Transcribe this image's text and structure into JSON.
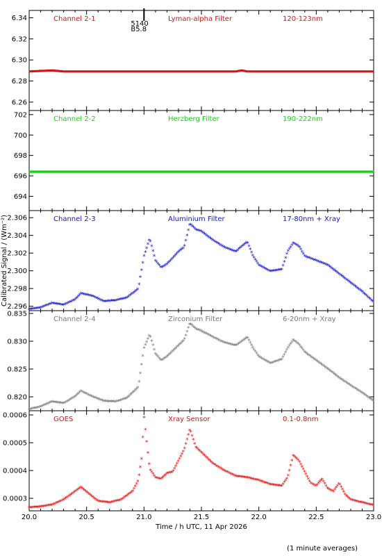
{
  "chart_data": {
    "type": "scatter",
    "xlabel": "Time / h UTC, 11 Apr 2026",
    "ylabel": "Calibrated Signal / (Wm⁻²)",
    "footnote": "(1 minute averages)",
    "xlim": [
      20.0,
      23.0
    ],
    "xticks": [
      "20.0",
      "20.5",
      "21.0",
      "21.5",
      "22.0",
      "22.5",
      "23.0"
    ],
    "annotation": {
      "x": 21.0,
      "lines": [
        "5140",
        "B5.8"
      ]
    },
    "panels": [
      {
        "name": "Channel 2-1",
        "filter": "Lyman-alpha Filter",
        "band": "120-123nm",
        "color": "#d21414",
        "ylim": [
          6.252,
          6.347
        ],
        "yticks": [
          "6.26",
          "6.28",
          "6.30",
          "6.32",
          "6.34"
        ],
        "x": [
          20.0,
          20.2,
          20.3,
          20.6,
          21.0,
          21.4,
          21.8,
          21.85,
          21.9,
          22.2,
          22.6,
          23.0
        ],
        "y": [
          6.289,
          6.29,
          6.289,
          6.289,
          6.289,
          6.289,
          6.289,
          6.29,
          6.289,
          6.289,
          6.289,
          6.289
        ]
      },
      {
        "name": "Channel 2-2",
        "filter": "Herzberg Filter",
        "band": "190-222nm",
        "color": "#14d214",
        "ylim": [
          692.6,
          702.4
        ],
        "yticks": [
          "694",
          "696",
          "698",
          "700",
          "702"
        ],
        "x": [
          20.0,
          20.5,
          21.0,
          21.5,
          22.0,
          22.5,
          23.0
        ],
        "y": [
          696.4,
          696.4,
          696.4,
          696.4,
          696.4,
          696.4,
          696.4
        ]
      },
      {
        "name": "Channel 2-3",
        "filter": "Aluminium Filter",
        "band": "17-80nm + Xray",
        "color": "#1414c8",
        "ylim": [
          2.2955,
          2.3068
        ],
        "yticks": [
          "2.296",
          "2.298",
          "2.300",
          "2.302",
          "2.304",
          "2.306"
        ],
        "x": [
          20.0,
          20.1,
          20.2,
          20.3,
          20.4,
          20.45,
          20.55,
          20.65,
          20.75,
          20.85,
          20.95,
          21.0,
          21.05,
          21.1,
          21.15,
          21.2,
          21.3,
          21.35,
          21.4,
          21.45,
          21.5,
          21.6,
          21.7,
          21.8,
          21.85,
          21.9,
          21.95,
          22.0,
          22.1,
          22.2,
          22.25,
          22.3,
          22.35,
          22.4,
          22.5,
          22.6,
          22.7,
          22.8,
          22.9,
          23.0
        ],
        "y": [
          2.2955,
          2.2957,
          2.2962,
          2.296,
          2.2966,
          2.2973,
          2.297,
          2.2964,
          2.2965,
          2.2968,
          2.2978,
          2.3015,
          2.3035,
          2.301,
          2.3002,
          2.3006,
          2.302,
          2.3025,
          2.3052,
          2.3045,
          2.3043,
          2.3033,
          2.3025,
          2.302,
          2.3026,
          2.3031,
          2.3015,
          2.3005,
          2.2998,
          2.3,
          2.302,
          2.303,
          2.3026,
          2.3015,
          2.301,
          2.3005,
          2.2995,
          2.2985,
          2.2975,
          2.2963
        ]
      },
      {
        "name": "Channel 2-4",
        "filter": "Zirconium Filter",
        "band": "6-20nm + Xray",
        "color": "#7a7a7a",
        "ylim": [
          0.8175,
          0.8355
        ],
        "yticks": [
          "0.820",
          "0.825",
          "0.830",
          "0.835"
        ],
        "x": [
          20.0,
          20.1,
          20.2,
          20.3,
          20.4,
          20.45,
          20.55,
          20.65,
          20.75,
          20.85,
          20.95,
          21.0,
          21.05,
          21.1,
          21.15,
          21.2,
          21.3,
          21.35,
          21.4,
          21.45,
          21.5,
          21.6,
          21.7,
          21.8,
          21.85,
          21.9,
          21.95,
          22.0,
          22.1,
          22.2,
          22.25,
          22.3,
          22.35,
          22.4,
          22.5,
          22.6,
          22.7,
          22.8,
          22.9,
          23.0
        ],
        "y": [
          0.8175,
          0.818,
          0.8189,
          0.8186,
          0.8198,
          0.8208,
          0.8198,
          0.819,
          0.8189,
          0.8195,
          0.8215,
          0.8285,
          0.831,
          0.8275,
          0.8263,
          0.827,
          0.829,
          0.83,
          0.833,
          0.832,
          0.8316,
          0.8305,
          0.8295,
          0.829,
          0.8297,
          0.8305,
          0.8285,
          0.827,
          0.8258,
          0.8265,
          0.8285,
          0.83,
          0.8292,
          0.8278,
          0.8263,
          0.8248,
          0.8232,
          0.8218,
          0.8205,
          0.819
        ]
      },
      {
        "name": "GOES",
        "filter": "Xray Sensor",
        "band": "0.1-0.8nm",
        "color": "#e01010",
        "ylim": [
          0.000255,
          0.000615
        ],
        "yticks": [
          "0.0003",
          "0.0004",
          "0.0005",
          "0.0006"
        ],
        "x": [
          20.0,
          20.1,
          20.2,
          20.3,
          20.4,
          20.45,
          20.5,
          20.6,
          20.7,
          20.8,
          20.9,
          20.95,
          20.98,
          21.0,
          21.02,
          21.05,
          21.1,
          21.15,
          21.2,
          21.25,
          21.3,
          21.35,
          21.4,
          21.45,
          21.5,
          21.6,
          21.7,
          21.8,
          21.9,
          22.0,
          22.1,
          22.2,
          22.25,
          22.3,
          22.35,
          22.4,
          22.45,
          22.5,
          22.55,
          22.6,
          22.65,
          22.7,
          22.75,
          22.8,
          22.9,
          23.0
        ],
        "y": [
          0.000262,
          0.000265,
          0.000272,
          0.00029,
          0.00032,
          0.000335,
          0.000318,
          0.000285,
          0.00028,
          0.00029,
          0.00032,
          0.00036,
          0.00044,
          0.00059,
          0.00051,
          0.0004,
          0.00037,
          0.000365,
          0.000385,
          0.00039,
          0.00043,
          0.00047,
          0.000545,
          0.00048,
          0.00046,
          0.00042,
          0.000395,
          0.000375,
          0.00037,
          0.00036,
          0.000345,
          0.00034,
          0.00037,
          0.00045,
          0.00043,
          0.00039,
          0.00035,
          0.00034,
          0.000365,
          0.00033,
          0.00032,
          0.00035,
          0.00031,
          0.00029,
          0.00028,
          0.00027
        ]
      }
    ]
  }
}
